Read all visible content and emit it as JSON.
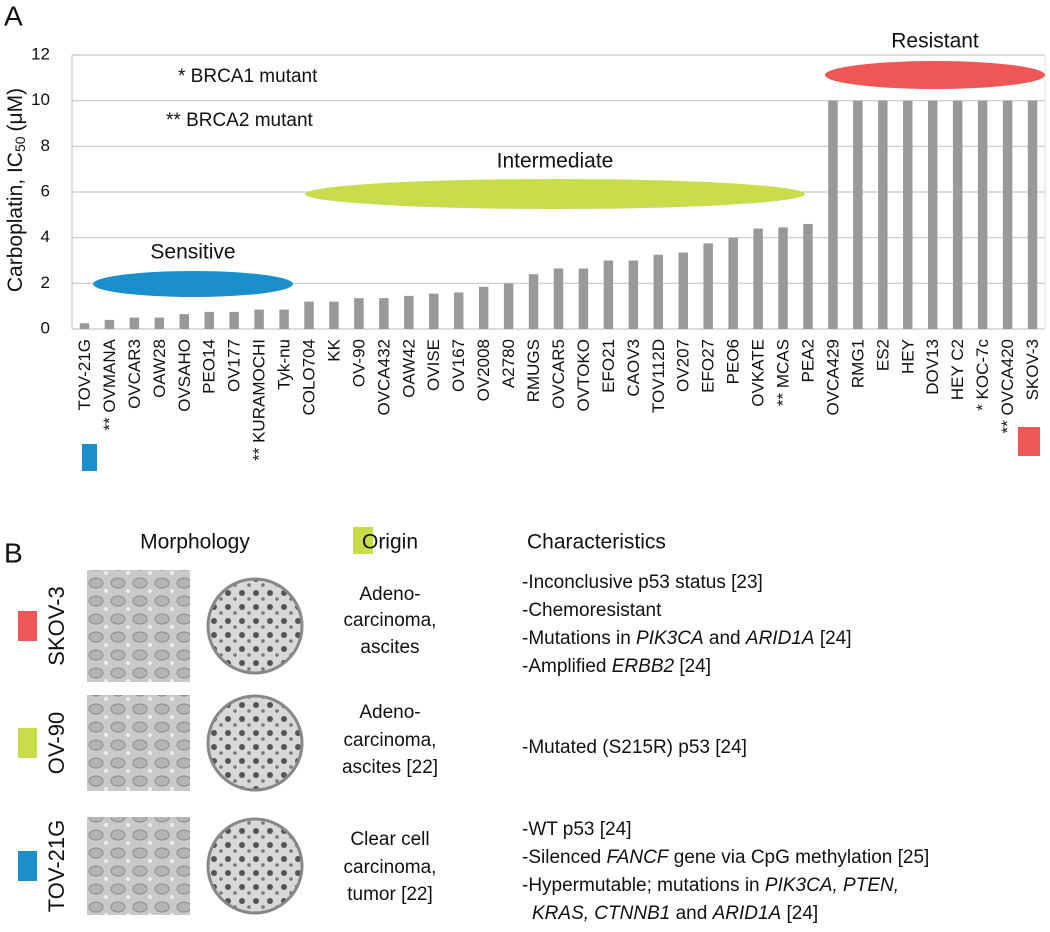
{
  "chart_data": {
    "type": "bar",
    "panel_label": "A",
    "ylabel": {
      "text": "Carboplatin, IC",
      "sub": "50",
      "unit": "(μM)"
    },
    "notes": [
      "* BRCA1 mutant",
      "** BRCA2 mutant"
    ],
    "groups": [
      {
        "name": "Sensitive",
        "color": "#1b8fcc"
      },
      {
        "name": "Intermediate",
        "color": "#c8dc4c"
      },
      {
        "name": "Resistant",
        "color": "#ef5656"
      }
    ],
    "categories": [
      "TOV-21G",
      "** OVMANA",
      "OVCAR3",
      "OAW28",
      "OVSAHO",
      "PEO14",
      "OV177",
      "** KURAMOCHI",
      "Tyk-nu",
      "COLO704",
      "KK",
      "OV-90",
      "OVCA432",
      "OAW42",
      "OVISE",
      "OV167",
      "OV2008",
      "A2780",
      "RMUGS",
      "OVCAR5",
      "OVTOKO",
      "EFO21",
      "CAOV3",
      "TOV112D",
      "OV207",
      "EFO27",
      "PEO6",
      "OVKATE",
      "** MCAS",
      "PEA2",
      "OVCA429",
      "RMG1",
      "ES2",
      "HEY",
      "DOV13",
      "HEY C2",
      "* KOC-7c",
      "** OVCA420",
      "SKOV-3"
    ],
    "values": [
      0.25,
      0.4,
      0.5,
      0.5,
      0.65,
      0.75,
      0.75,
      0.85,
      0.85,
      1.2,
      1.2,
      1.35,
      1.35,
      1.45,
      1.55,
      1.6,
      1.85,
      2.0,
      2.4,
      2.65,
      2.65,
      3.0,
      3.0,
      3.25,
      3.35,
      3.75,
      4.0,
      4.4,
      4.45,
      4.6,
      10,
      10,
      10,
      10,
      10,
      10,
      10,
      10,
      10
    ],
    "color": "#999999",
    "ylim": [
      0,
      12
    ],
    "yticks": [
      0,
      2,
      4,
      6,
      8,
      10,
      12
    ],
    "grid": true
  },
  "panel_b": {
    "label": "B",
    "headers": [
      "Morphology",
      "Origin",
      "Characteristics"
    ],
    "rows": [
      {
        "name": "SKOV-3",
        "color": "#ef5656",
        "origin": [
          "Adeno-",
          "carcinoma,",
          "ascites"
        ],
        "characteristics": [
          [
            {
              "text": "-Inconclusive p53 status [23]"
            }
          ],
          [
            {
              "text": "-Chemoresistant"
            }
          ],
          [
            {
              "text": "-Mutations in "
            },
            {
              "text": "PIK3CA",
              "italic": true
            },
            {
              "text": " and "
            },
            {
              "text": "ARID1A",
              "italic": true
            },
            {
              "text": " [24]"
            }
          ],
          [
            {
              "text": "-Amplified "
            },
            {
              "text": "ERBB2",
              "italic": true
            },
            {
              "text": " [24]"
            }
          ]
        ]
      },
      {
        "name": "OV-90",
        "color": "#c8dc4c",
        "origin": [
          "Adeno-",
          "carcinoma,",
          "ascites [22]"
        ],
        "characteristics": [
          [
            {
              "text": "-Mutated (S215R) p53 [24]"
            }
          ]
        ]
      },
      {
        "name": "TOV-21G",
        "color": "#1b8fcc",
        "origin": [
          "Clear cell",
          "carcinoma,",
          "tumor [22]"
        ],
        "characteristics": [
          [
            {
              "text": "-WT p53 [24]"
            }
          ],
          [
            {
              "text": "-Silenced "
            },
            {
              "text": "FANCF",
              "italic": true
            },
            {
              "text": " gene via CpG methylation [25]"
            }
          ],
          [
            {
              "text": "-Hypermutable; mutations in "
            },
            {
              "text": "PIK3CA, PTEN,",
              "italic": true
            }
          ],
          [
            {
              "text": "KRAS, CTNNB1",
              "italic": true
            },
            {
              "text": " and "
            },
            {
              "text": "ARID1A",
              "italic": true
            },
            {
              "text": " [24]"
            }
          ]
        ]
      }
    ]
  }
}
